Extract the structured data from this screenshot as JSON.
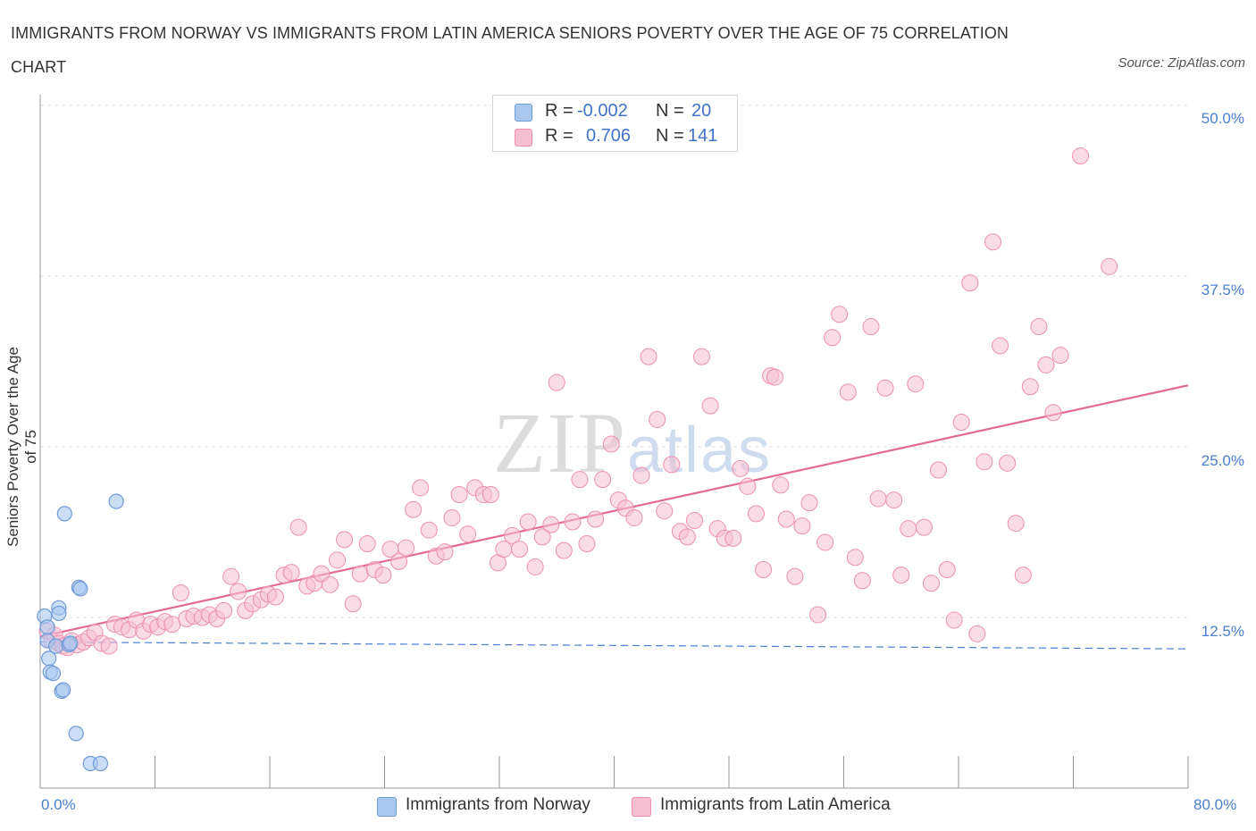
{
  "title": "IMMIGRANTS FROM NORWAY VS IMMIGRANTS FROM LATIN AMERICA SENIORS POVERTY OVER THE AGE OF 75 CORRELATION CHART",
  "source": "Source: ZipAtlas.com",
  "watermark": {
    "zip": "ZIP",
    "atlas": "atlas"
  },
  "stats": {
    "norway": {
      "r_label": "R =",
      "r_value": "-0.002",
      "n_label": "N =",
      "n_value": "20"
    },
    "latam": {
      "r_label": "R =",
      "r_value": "0.706",
      "n_label": "N =",
      "n_value": "141"
    }
  },
  "legend": {
    "norway": "Immigrants from Norway",
    "latam": "Immigrants from Latin America"
  },
  "colors": {
    "norway_fill": "#a9c8f0",
    "norway_stroke": "#6f9ad8",
    "norway_line": "#4a7fd0",
    "latam_fill": "#f6bfd1",
    "latam_stroke": "#ec8fb0",
    "latam_line": "#e46a96",
    "axis_text": "#4a7fd0",
    "grid": "#dddddd"
  },
  "chart_data": {
    "type": "scatter",
    "xlabel": "",
    "ylabel": "Seniors Poverty Over the Age of 75",
    "xlim": [
      0,
      80
    ],
    "ylim": [
      0,
      50
    ],
    "x_tick_labels": [
      "0.0%",
      "80.0%"
    ],
    "y_tick_labels": [
      "12.5%",
      "25.0%",
      "37.5%",
      "50.0%"
    ],
    "y_ticks": [
      12.5,
      25.0,
      37.5,
      50.0
    ],
    "series": [
      {
        "name": "Immigrants from Norway",
        "trend": {
          "x0": 0,
          "y0": 10.7,
          "x1": 80,
          "y1": 10.2
        },
        "points": [
          [
            0.3,
            12.6
          ],
          [
            0.5,
            11.8
          ],
          [
            0.5,
            10.8
          ],
          [
            0.6,
            9.5
          ],
          [
            0.7,
            8.5
          ],
          [
            0.9,
            8.4
          ],
          [
            1.1,
            10.4
          ],
          [
            1.3,
            13.2
          ],
          [
            1.3,
            12.8
          ],
          [
            1.5,
            7.1
          ],
          [
            1.6,
            7.2
          ],
          [
            1.7,
            20.1
          ],
          [
            2.0,
            10.5
          ],
          [
            2.1,
            10.6
          ],
          [
            2.5,
            4.0
          ],
          [
            2.7,
            14.7
          ],
          [
            2.8,
            14.6
          ],
          [
            3.5,
            1.8
          ],
          [
            4.2,
            1.8
          ],
          [
            5.3,
            21.0
          ]
        ]
      },
      {
        "name": "Immigrants from Latin America",
        "trend": {
          "x0": 0,
          "y0": 11.1,
          "x1": 80,
          "y1": 29.5
        },
        "points": [
          [
            0.5,
            11.5
          ],
          [
            0.8,
            10.8
          ],
          [
            1.0,
            11.2
          ],
          [
            1.3,
            10.6
          ],
          [
            1.6,
            10.4
          ],
          [
            1.9,
            10.3
          ],
          [
            2.2,
            10.8
          ],
          [
            2.6,
            10.5
          ],
          [
            3.0,
            10.7
          ],
          [
            3.4,
            11.0
          ],
          [
            3.8,
            11.4
          ],
          [
            4.3,
            10.6
          ],
          [
            4.8,
            10.4
          ],
          [
            5.2,
            12.0
          ],
          [
            5.7,
            11.8
          ],
          [
            6.2,
            11.6
          ],
          [
            6.7,
            12.3
          ],
          [
            7.2,
            11.5
          ],
          [
            7.7,
            12.0
          ],
          [
            8.2,
            11.8
          ],
          [
            8.7,
            12.2
          ],
          [
            9.2,
            12.0
          ],
          [
            9.8,
            14.3
          ],
          [
            10.2,
            12.4
          ],
          [
            10.7,
            12.6
          ],
          [
            11.3,
            12.5
          ],
          [
            11.8,
            12.7
          ],
          [
            12.3,
            12.4
          ],
          [
            12.8,
            13.0
          ],
          [
            13.3,
            15.5
          ],
          [
            13.8,
            14.4
          ],
          [
            14.3,
            13.0
          ],
          [
            14.8,
            13.5
          ],
          [
            15.4,
            13.8
          ],
          [
            15.9,
            14.2
          ],
          [
            16.4,
            14.0
          ],
          [
            17.0,
            15.6
          ],
          [
            17.5,
            15.8
          ],
          [
            18.0,
            19.1
          ],
          [
            18.6,
            14.8
          ],
          [
            19.1,
            15.0
          ],
          [
            19.6,
            15.7
          ],
          [
            20.2,
            14.9
          ],
          [
            20.7,
            16.7
          ],
          [
            21.2,
            18.2
          ],
          [
            21.8,
            13.5
          ],
          [
            22.3,
            15.7
          ],
          [
            22.8,
            17.9
          ],
          [
            23.3,
            16.0
          ],
          [
            23.9,
            15.6
          ],
          [
            24.4,
            17.5
          ],
          [
            25.0,
            16.6
          ],
          [
            25.5,
            17.6
          ],
          [
            26.0,
            20.4
          ],
          [
            26.5,
            22.0
          ],
          [
            27.1,
            18.9
          ],
          [
            27.6,
            17.0
          ],
          [
            28.2,
            17.3
          ],
          [
            28.7,
            19.8
          ],
          [
            29.2,
            21.5
          ],
          [
            29.8,
            18.6
          ],
          [
            30.3,
            22.0
          ],
          [
            30.9,
            21.5
          ],
          [
            31.4,
            21.5
          ],
          [
            31.9,
            16.5
          ],
          [
            32.3,
            17.5
          ],
          [
            32.9,
            18.5
          ],
          [
            33.4,
            17.5
          ],
          [
            34.0,
            19.5
          ],
          [
            34.5,
            16.2
          ],
          [
            35.0,
            18.4
          ],
          [
            35.6,
            19.3
          ],
          [
            36.0,
            29.7
          ],
          [
            36.5,
            17.4
          ],
          [
            37.1,
            19.5
          ],
          [
            37.6,
            22.6
          ],
          [
            38.1,
            17.9
          ],
          [
            38.7,
            19.7
          ],
          [
            39.2,
            22.6
          ],
          [
            39.8,
            25.2
          ],
          [
            40.3,
            21.1
          ],
          [
            40.8,
            20.5
          ],
          [
            41.4,
            19.8
          ],
          [
            41.9,
            22.9
          ],
          [
            42.4,
            31.6
          ],
          [
            43.0,
            27.0
          ],
          [
            43.5,
            20.3
          ],
          [
            44.0,
            23.7
          ],
          [
            44.6,
            18.8
          ],
          [
            45.1,
            18.4
          ],
          [
            45.6,
            19.6
          ],
          [
            46.1,
            31.6
          ],
          [
            46.7,
            28.0
          ],
          [
            47.2,
            19.0
          ],
          [
            47.7,
            18.3
          ],
          [
            48.3,
            18.3
          ],
          [
            48.8,
            23.4
          ],
          [
            49.3,
            22.1
          ],
          [
            49.9,
            20.1
          ],
          [
            50.4,
            16.0
          ],
          [
            50.9,
            30.2
          ],
          [
            51.2,
            30.1
          ],
          [
            51.6,
            22.2
          ],
          [
            52.0,
            19.7
          ],
          [
            52.6,
            15.5
          ],
          [
            53.1,
            19.2
          ],
          [
            53.6,
            20.9
          ],
          [
            54.2,
            12.7
          ],
          [
            54.7,
            18.0
          ],
          [
            55.2,
            33.0
          ],
          [
            55.7,
            34.7
          ],
          [
            56.3,
            29.0
          ],
          [
            56.8,
            16.9
          ],
          [
            57.3,
            15.2
          ],
          [
            57.9,
            33.8
          ],
          [
            58.4,
            21.2
          ],
          [
            58.9,
            29.3
          ],
          [
            59.5,
            21.1
          ],
          [
            60.0,
            15.6
          ],
          [
            60.5,
            19.0
          ],
          [
            61.0,
            29.6
          ],
          [
            61.6,
            19.1
          ],
          [
            62.1,
            15.0
          ],
          [
            62.6,
            23.3
          ],
          [
            63.2,
            16.0
          ],
          [
            63.7,
            12.3
          ],
          [
            64.2,
            26.8
          ],
          [
            64.8,
            37.0
          ],
          [
            65.3,
            11.3
          ],
          [
            65.8,
            23.9
          ],
          [
            66.4,
            40.0
          ],
          [
            66.9,
            32.4
          ],
          [
            67.4,
            23.8
          ],
          [
            68.0,
            19.4
          ],
          [
            68.5,
            15.6
          ],
          [
            69.0,
            29.4
          ],
          [
            69.6,
            33.8
          ],
          [
            70.1,
            31.0
          ],
          [
            70.6,
            27.5
          ],
          [
            71.1,
            31.7
          ],
          [
            72.5,
            46.3
          ],
          [
            74.5,
            38.2
          ]
        ]
      }
    ]
  }
}
